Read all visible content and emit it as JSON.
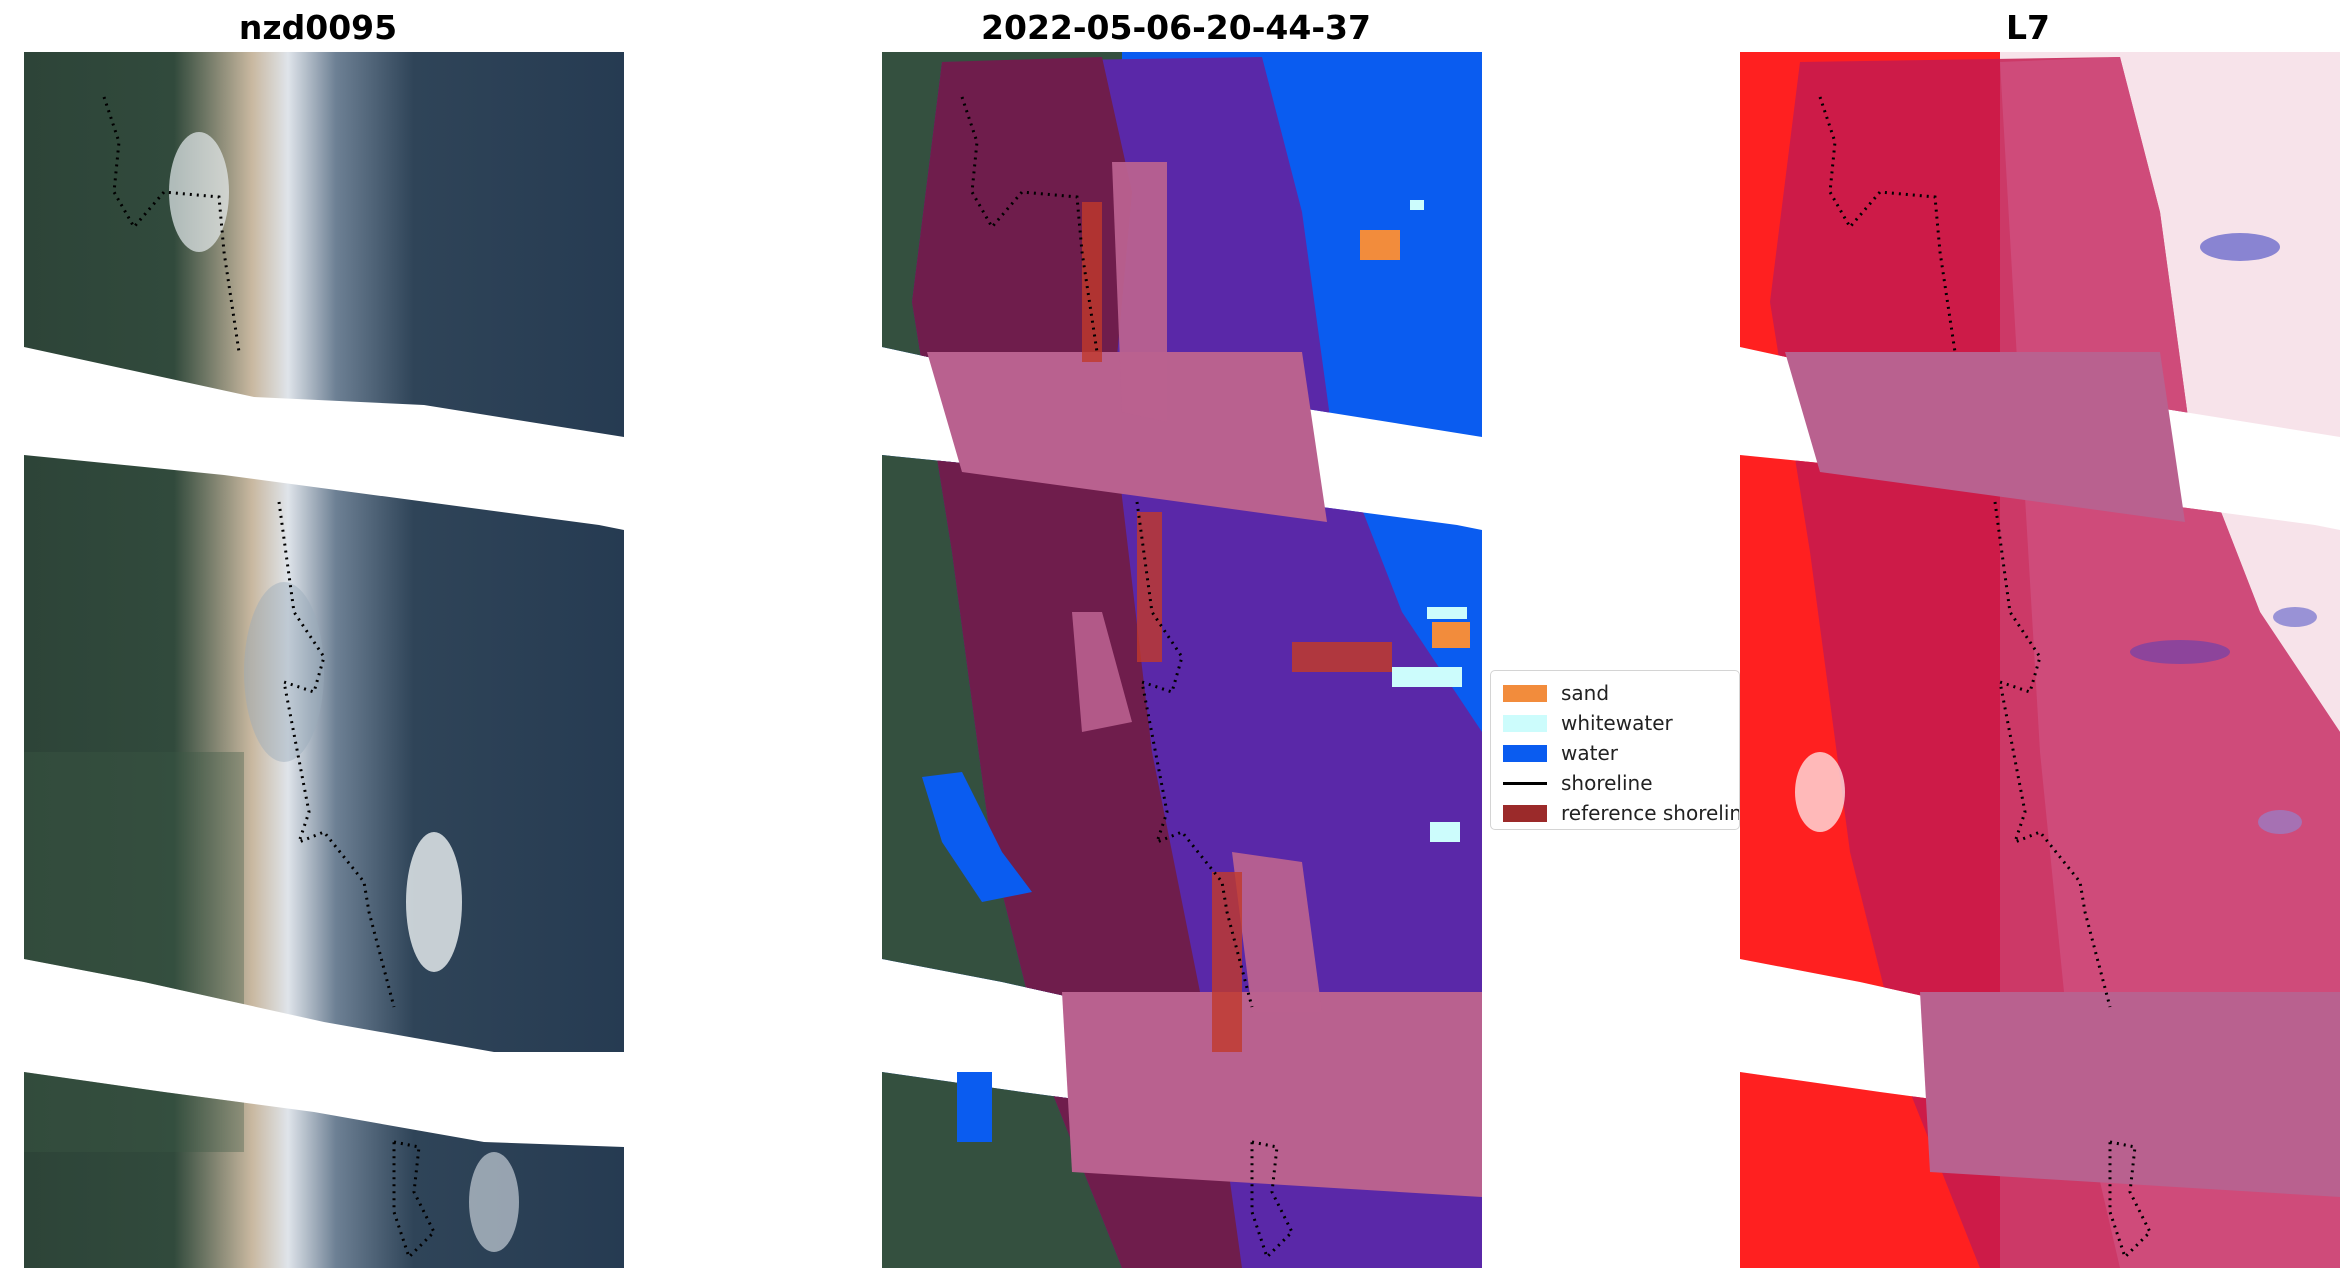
{
  "panels": [
    {
      "title": "nzd0095"
    },
    {
      "title": "2022-05-06-20-44-37"
    },
    {
      "title": "L7"
    }
  ],
  "legend": {
    "items": [
      {
        "label": "sand",
        "color": "#f28c3c",
        "kind": "patch"
      },
      {
        "label": "whitewater",
        "color": "#ccfcfc",
        "kind": "patch"
      },
      {
        "label": "water",
        "color": "#0a5cf0",
        "kind": "patch"
      },
      {
        "label": "shoreline",
        "color": "#000000",
        "kind": "line"
      },
      {
        "label": "reference shorelin",
        "color": "#9b2a2a",
        "kind": "patch"
      }
    ]
  },
  "colors": {
    "rgb_water": "#263a52",
    "rgb_vegetation": "#2f4a40",
    "rgb_surf": "#d8dde4",
    "overlay_buffer": "#b9618f",
    "overlay_land": "#6f1d4c",
    "overlay_water": "#5a28a8",
    "index_land": "#ff1a1a",
    "index_buffer": "#c41b50",
    "index_water": "#f7e3ea"
  }
}
